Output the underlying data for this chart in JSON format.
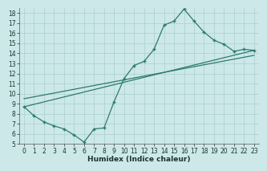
{
  "title": "",
  "xlabel": "Humidex (Indice chaleur)",
  "ylabel": "",
  "background_color": "#cde8e8",
  "grid_color": "#aacfcf",
  "line_color": "#2d7a72",
  "xlim": [
    -0.5,
    23.5
  ],
  "ylim": [
    5,
    18.5
  ],
  "yticks": [
    5,
    6,
    7,
    8,
    9,
    10,
    11,
    12,
    13,
    14,
    15,
    16,
    17,
    18
  ],
  "xticks": [
    0,
    1,
    2,
    3,
    4,
    5,
    6,
    7,
    8,
    9,
    10,
    11,
    12,
    13,
    14,
    15,
    16,
    17,
    18,
    19,
    20,
    21,
    22,
    23
  ],
  "line1_x": [
    0,
    1,
    2,
    3,
    4,
    5,
    6,
    7,
    8,
    9,
    10,
    11,
    12,
    13,
    14,
    15,
    16,
    17,
    18,
    19,
    20,
    21,
    22,
    23
  ],
  "line1_y": [
    8.7,
    7.8,
    7.2,
    6.8,
    6.5,
    5.9,
    5.2,
    6.5,
    6.6,
    9.2,
    11.5,
    12.8,
    13.2,
    14.4,
    16.8,
    17.2,
    18.4,
    17.2,
    16.1,
    15.3,
    14.9,
    14.2,
    14.4,
    14.3
  ],
  "line2_x": [
    0,
    23
  ],
  "line2_y": [
    8.7,
    14.3
  ],
  "line3_x": [
    0,
    23
  ],
  "line3_y": [
    9.5,
    13.8
  ]
}
